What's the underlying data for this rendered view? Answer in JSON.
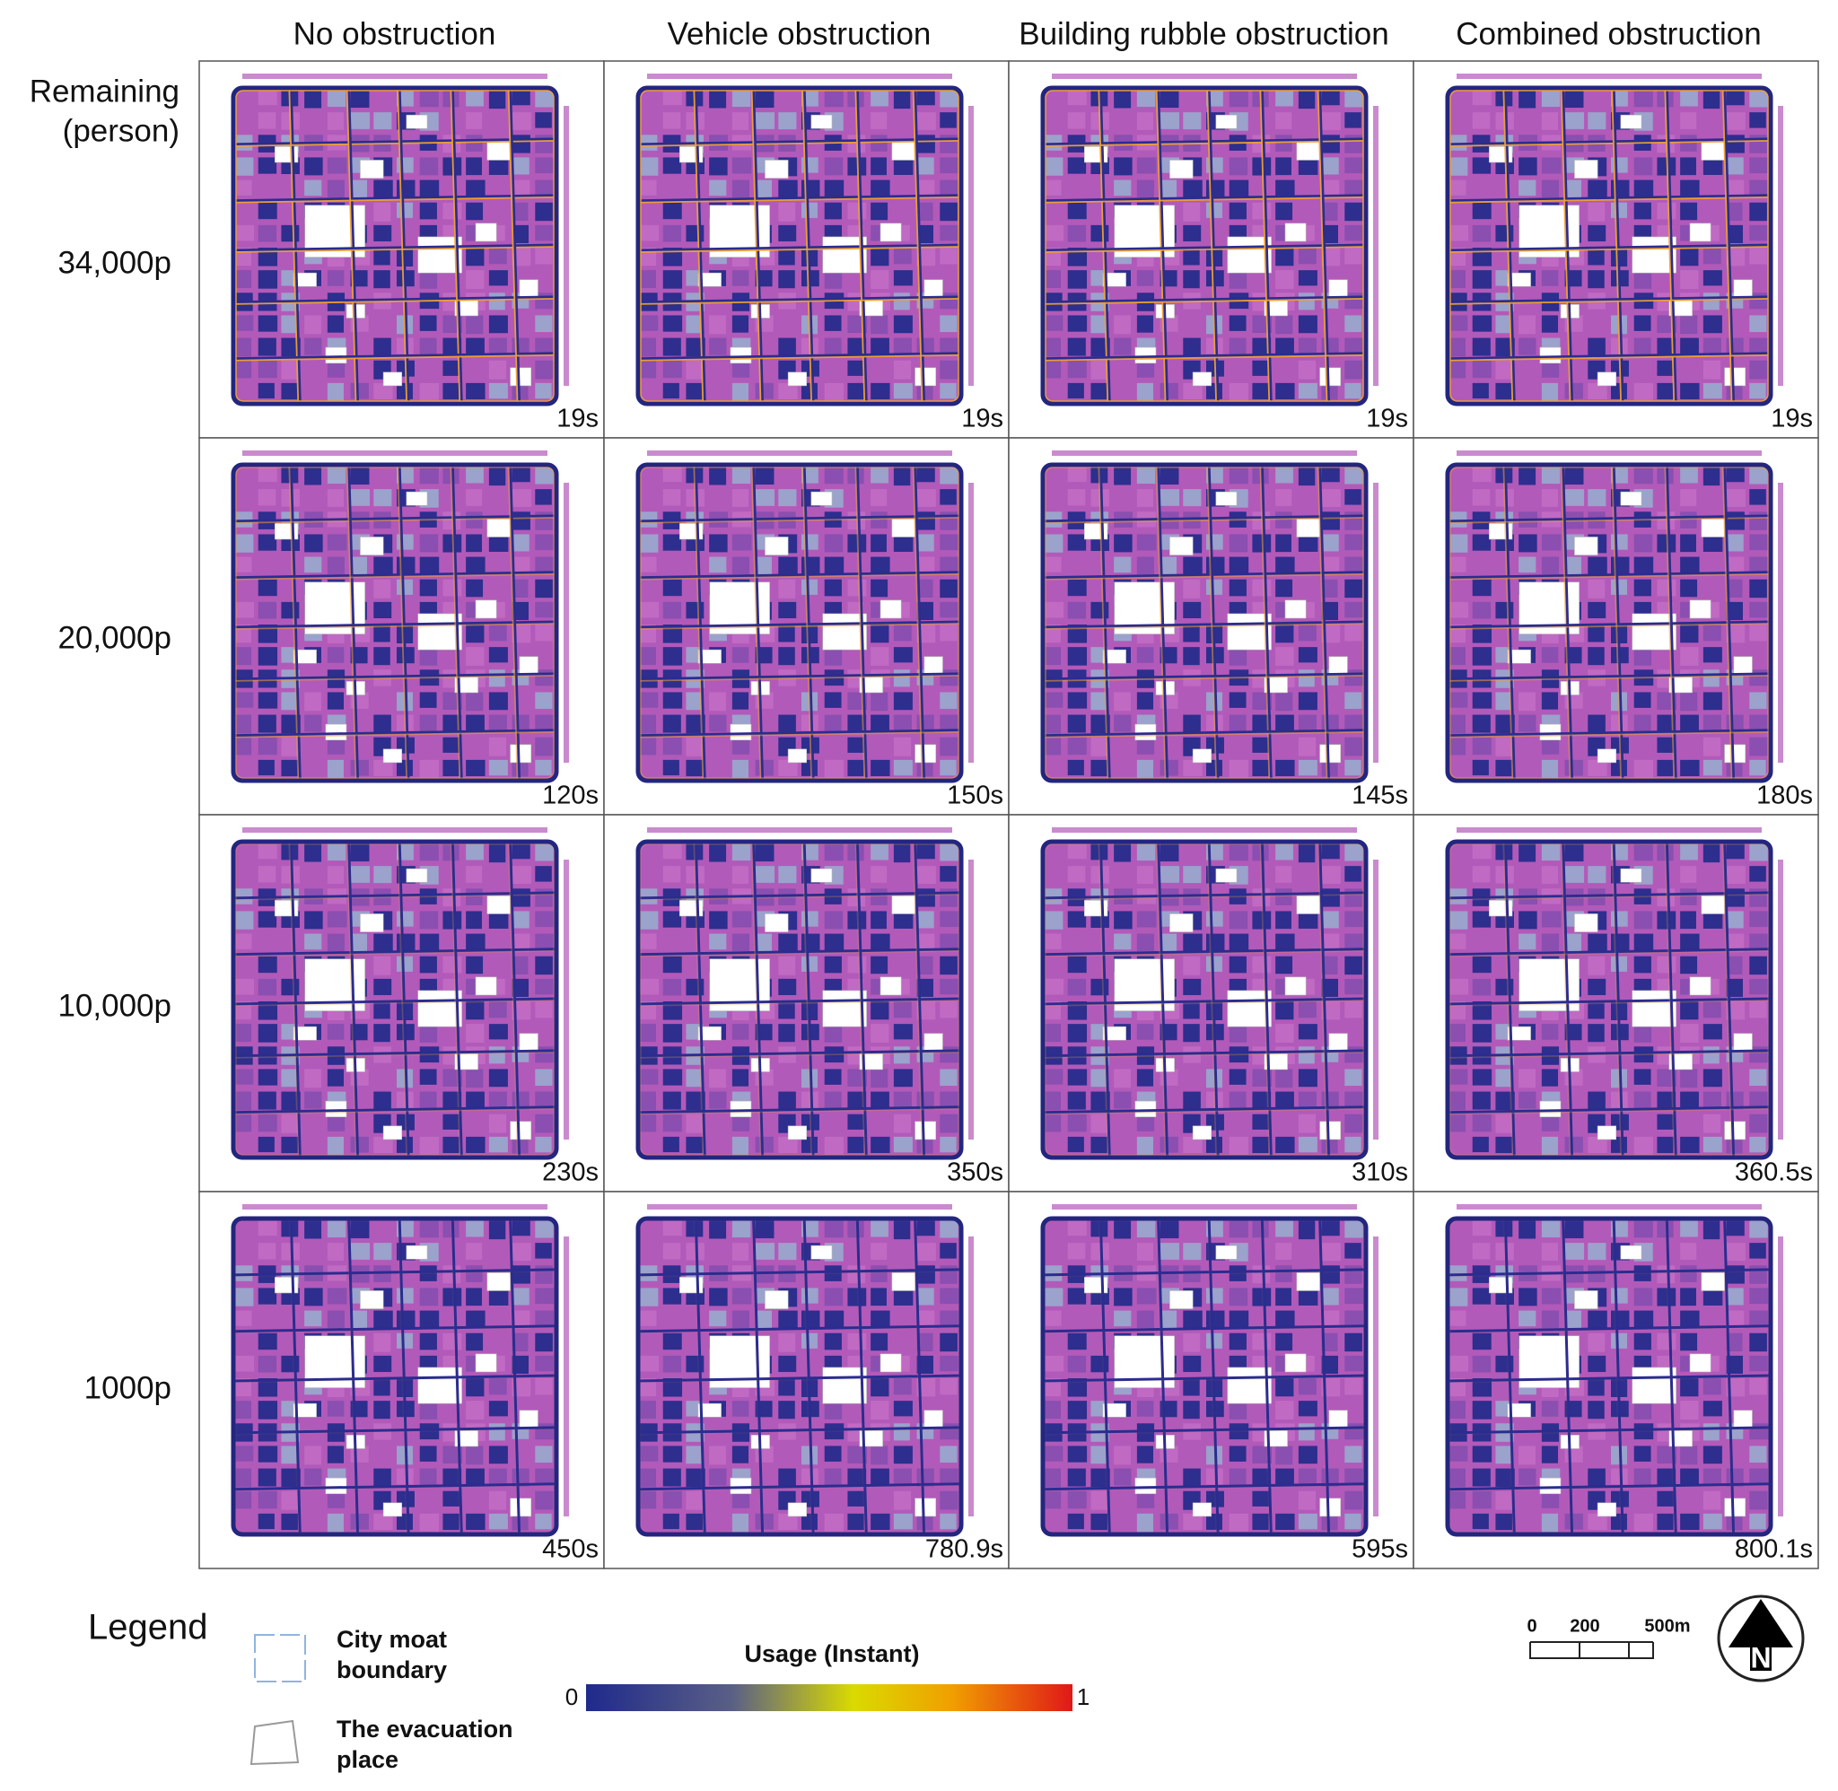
{
  "row_header_lines": [
    "Remaining",
    "(person)"
  ],
  "columns": [
    "No obstruction",
    "Vehicle obstruction",
    "Building rubble obstruction",
    "Combined obstruction"
  ],
  "rows": [
    {
      "label": "34,000p",
      "times": [
        "19s",
        "19s",
        "19s",
        "19s"
      ]
    },
    {
      "label": "20,000p",
      "times": [
        "120s",
        "150s",
        "145s",
        "180s"
      ]
    },
    {
      "label": "10,000p",
      "times": [
        "230s",
        "350s",
        "310s",
        "360.5s"
      ]
    },
    {
      "label": "1000p",
      "times": [
        "450s",
        "780.9s",
        "595s",
        "800.1s"
      ]
    }
  ],
  "legend": {
    "title": "Legend",
    "items": [
      {
        "label_lines": [
          "City moat",
          "boundary"
        ]
      },
      {
        "label_lines": [
          "The evacuation",
          "place"
        ]
      }
    ],
    "colorbar": {
      "title": "Usage (Instant)",
      "min_label": "0",
      "max_label": "1"
    }
  },
  "scale_bar": {
    "labels": [
      "0",
      "200",
      "500m"
    ]
  },
  "north_arrow": "N"
}
